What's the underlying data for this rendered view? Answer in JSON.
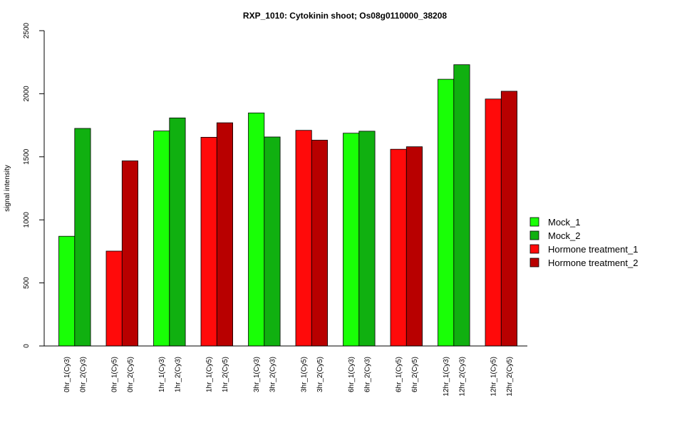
{
  "chart_data": {
    "type": "bar",
    "title": "RXP_1010: Cytokinin shoot; Os08g0110000_38208",
    "xlabel": "",
    "ylabel": "signal intensity",
    "ylim": [
      0,
      2500
    ],
    "yticks": [
      0,
      500,
      1000,
      1500,
      2000,
      2500
    ],
    "grid": false,
    "legend_position": "right",
    "legend": [
      {
        "name": "Mock_1",
        "color": "#19ff06"
      },
      {
        "name": "Mock_2",
        "color": "#10b010"
      },
      {
        "name": "Hormone treatment_1",
        "color": "#ff0a0a"
      },
      {
        "name": "Hormone treatment_2",
        "color": "#b80000"
      }
    ],
    "categories": [
      "0hr_1(Cy3)",
      "0hr_2(Cy3)",
      "0hr_1(Cy5)",
      "0hr_2(Cy5)",
      "1hr_1(Cy3)",
      "1hr_2(Cy3)",
      "1hr_1(Cy5)",
      "1hr_2(Cy5)",
      "3hr_1(Cy3)",
      "3hr_2(Cy3)",
      "3hr_1(Cy5)",
      "3hr_2(Cy5)",
      "6hr_1(Cy3)",
      "6hr_2(Cy3)",
      "6hr_1(Cy5)",
      "6hr_2(Cy5)",
      "12hr_1(Cy3)",
      "12hr_2(Cy3)",
      "12hr_1(Cy5)",
      "12hr_2(Cy5)"
    ],
    "values": [
      870,
      1725,
      752,
      1468,
      1705,
      1808,
      1655,
      1770,
      1848,
      1657,
      1710,
      1632,
      1687,
      1703,
      1560,
      1580,
      2115,
      2230,
      1958,
      2020
    ],
    "series_index": [
      0,
      1,
      2,
      3,
      0,
      1,
      2,
      3,
      0,
      1,
      2,
      3,
      0,
      1,
      2,
      3,
      0,
      1,
      2,
      3
    ]
  }
}
